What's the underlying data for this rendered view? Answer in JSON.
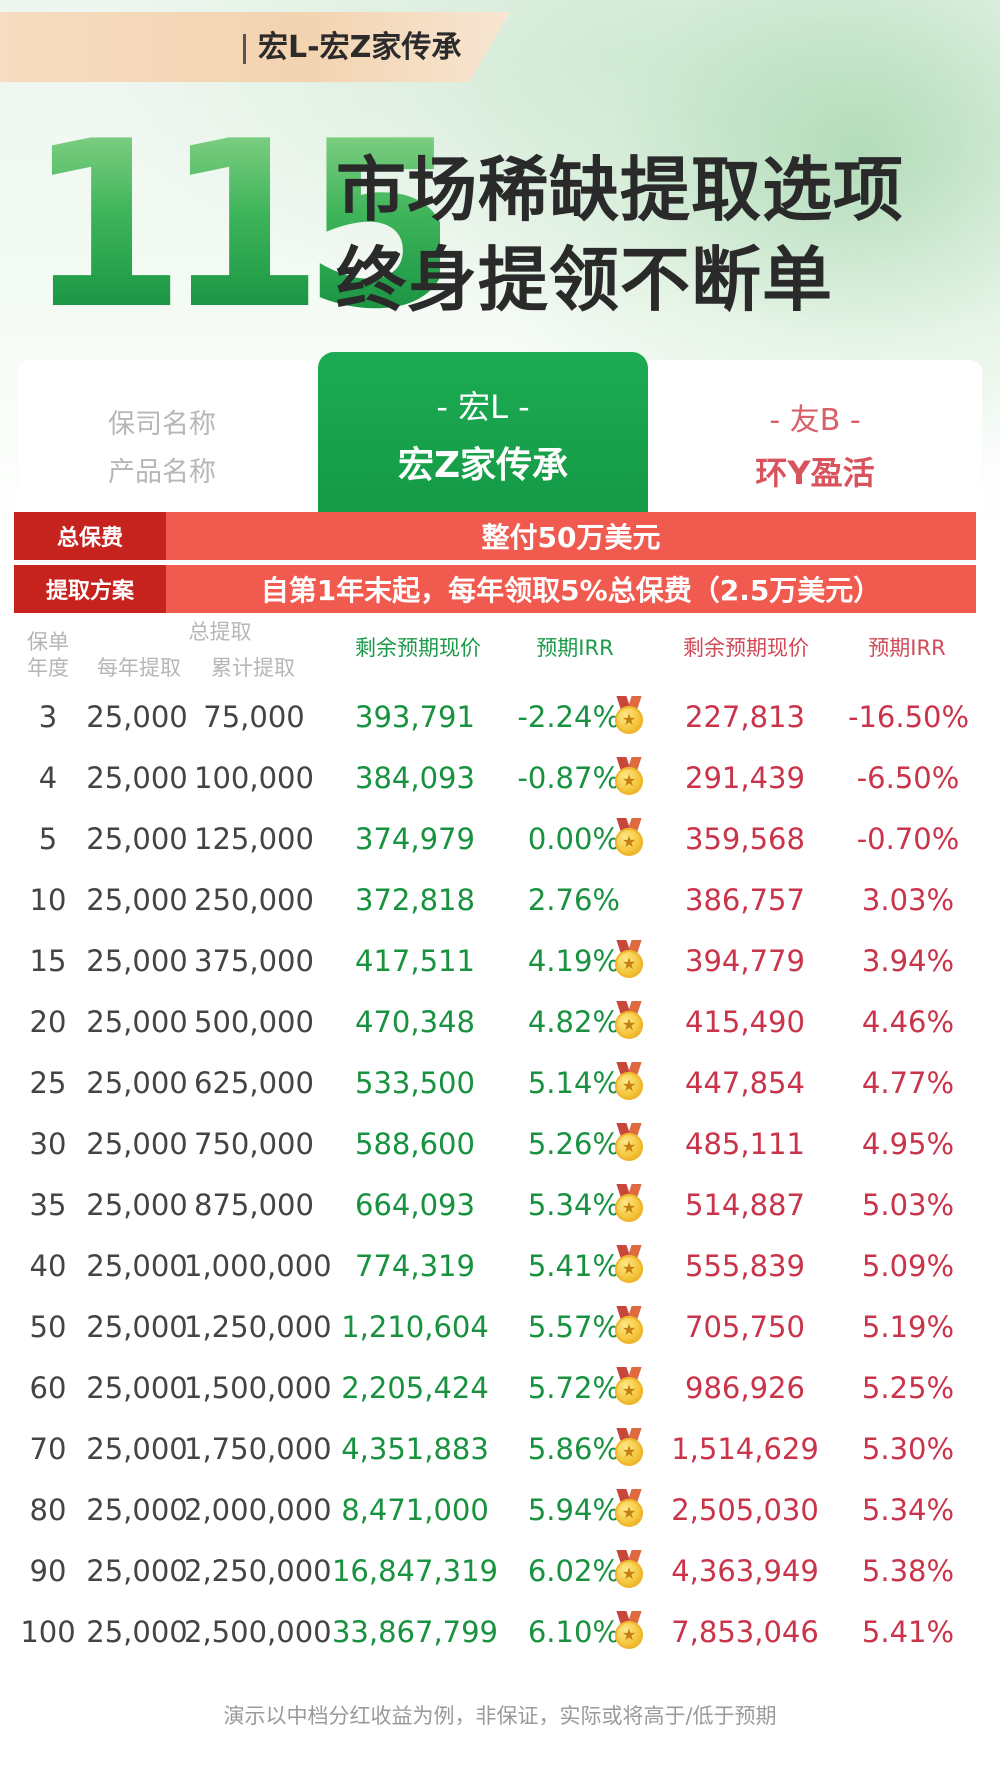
{
  "header": {
    "tag": "宏L-宏Z家传承",
    "big_number": "115",
    "headline_line1": "市场稀缺提取选项",
    "headline_line2": "终身提领不断单"
  },
  "compare": {
    "label_company": "保司名称",
    "label_product": "产品名称",
    "main": {
      "company": "- 宏L -",
      "product": "宏Z家传承"
    },
    "rival": {
      "company": "- 友B -",
      "product": "环Y盈活"
    }
  },
  "bands": {
    "premium_label": "总保费",
    "premium_value": "整付50万美元",
    "plan_label": "提取方案",
    "plan_value": "自第1年末起，每年领取5%总保费（2.5万美元）"
  },
  "table_headers": {
    "year_1": "保单",
    "year_2": "年度",
    "withdraw_group": "总提取",
    "annual": "每年提取",
    "cumulative": "累计提取",
    "cash_value": "剩余预期现价",
    "irr": "预期IRR",
    "rival_cash_value": "剩余预期现价",
    "rival_irr": "预期IRR"
  },
  "rows": [
    {
      "year": "3",
      "annual": "25,000",
      "cum": "75,000",
      "cv": "393,791",
      "irr": "-2.24%",
      "medal": true,
      "bcv": "227,813",
      "birr": "-16.50%"
    },
    {
      "year": "4",
      "annual": "25,000",
      "cum": "100,000",
      "cv": "384,093",
      "irr": "-0.87%",
      "medal": true,
      "bcv": "291,439",
      "birr": "-6.50%"
    },
    {
      "year": "5",
      "annual": "25,000",
      "cum": "125,000",
      "cv": "374,979",
      "irr": "0.00%",
      "medal": true,
      "bcv": "359,568",
      "birr": "-0.70%"
    },
    {
      "year": "10",
      "annual": "25,000",
      "cum": "250,000",
      "cv": "372,818",
      "irr": "2.76%",
      "medal": false,
      "bcv": "386,757",
      "birr": "3.03%"
    },
    {
      "year": "15",
      "annual": "25,000",
      "cum": "375,000",
      "cv": "417,511",
      "irr": "4.19%",
      "medal": true,
      "bcv": "394,779",
      "birr": "3.94%"
    },
    {
      "year": "20",
      "annual": "25,000",
      "cum": "500,000",
      "cv": "470,348",
      "irr": "4.82%",
      "medal": true,
      "bcv": "415,490",
      "birr": "4.46%"
    },
    {
      "year": "25",
      "annual": "25,000",
      "cum": "625,000",
      "cv": "533,500",
      "irr": "5.14%",
      "medal": true,
      "bcv": "447,854",
      "birr": "4.77%"
    },
    {
      "year": "30",
      "annual": "25,000",
      "cum": "750,000",
      "cv": "588,600",
      "irr": "5.26%",
      "medal": true,
      "bcv": "485,111",
      "birr": "4.95%"
    },
    {
      "year": "35",
      "annual": "25,000",
      "cum": "875,000",
      "cv": "664,093",
      "irr": "5.34%",
      "medal": true,
      "bcv": "514,887",
      "birr": "5.03%"
    },
    {
      "year": "40",
      "annual": "25,000",
      "cum": "1,000,000",
      "cv": "774,319",
      "irr": "5.41%",
      "medal": true,
      "bcv": "555,839",
      "birr": "5.09%"
    },
    {
      "year": "50",
      "annual": "25,000",
      "cum": "1,250,000",
      "cv": "1,210,604",
      "irr": "5.57%",
      "medal": true,
      "bcv": "705,750",
      "birr": "5.19%"
    },
    {
      "year": "60",
      "annual": "25,000",
      "cum": "1,500,000",
      "cv": "2,205,424",
      "irr": "5.72%",
      "medal": true,
      "bcv": "986,926",
      "birr": "5.25%"
    },
    {
      "year": "70",
      "annual": "25,000",
      "cum": "1,750,000",
      "cv": "4,351,883",
      "irr": "5.86%",
      "medal": true,
      "bcv": "1,514,629",
      "birr": "5.30%"
    },
    {
      "year": "80",
      "annual": "25,000",
      "cum": "2,000,000",
      "cv": "8,471,000",
      "irr": "5.94%",
      "medal": true,
      "bcv": "2,505,030",
      "birr": "5.34%"
    },
    {
      "year": "90",
      "annual": "25,000",
      "cum": "2,250,000",
      "cv": "16,847,319",
      "irr": "6.02%",
      "medal": true,
      "bcv": "4,363,949",
      "birr": "5.38%"
    },
    {
      "year": "100",
      "annual": "25,000",
      "cum": "2,500,000",
      "cv": "33,867,799",
      "irr": "6.10%",
      "medal": true,
      "bcv": "7,853,046",
      "birr": "5.41%"
    }
  ],
  "footnote": "演示以中档分红收益为例，非保证，实际或将高于/低于预期",
  "colors": {
    "brand_green": "#1cab52",
    "rival_red": "#d9535f",
    "band_red": "#f15a4f",
    "band_dark_red": "#c6231f"
  }
}
